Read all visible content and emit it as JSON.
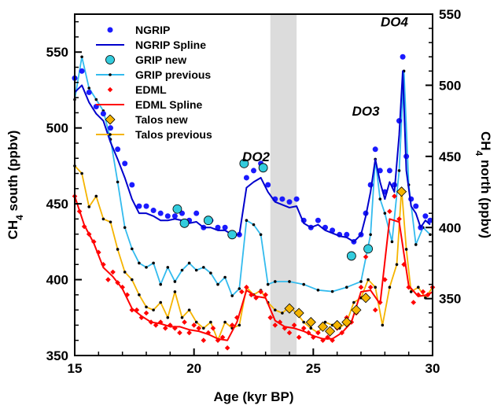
{
  "chart_data": {
    "type": "scatter",
    "xlabel": "Age (kyr BP)",
    "ylabel_left": "CH4 south (ppbv)",
    "ylabel_right": "CH4 north (ppbv)",
    "ylabel_left_parts": {
      "pre": "CH",
      "sub": "4",
      "post": " south (ppbv)"
    },
    "ylabel_right_parts": {
      "pre": "CH",
      "sub": "4",
      "post": " north (ppbv)"
    },
    "xlim": [
      15,
      30
    ],
    "ylim_left": [
      350,
      575
    ],
    "ylim_right": [
      310,
      550
    ],
    "x_ticks": [
      "15",
      "20",
      "25",
      "30"
    ],
    "y_left_ticks": [
      "350",
      "400",
      "450",
      "500",
      "550"
    ],
    "y_right_ticks": [
      "350",
      "400",
      "450",
      "500",
      "550"
    ],
    "shaded_region": [
      23.2,
      24.3
    ],
    "grid": false,
    "legend_position": "top-left",
    "annotations": [
      {
        "text": "DO2",
        "x": 22.6,
        "axis": "left",
        "y": 478
      },
      {
        "text": "DO3",
        "x": 27.2,
        "axis": "left",
        "y": 508
      },
      {
        "text": "DO4",
        "x": 28.4,
        "axis": "left",
        "y": 567
      }
    ],
    "series": [
      {
        "name": "NGRIP",
        "axis": "right",
        "kind": "markers",
        "marker": "circle",
        "color": "#1a1aff",
        "x": [
          15.0,
          15.3,
          15.6,
          15.9,
          16.2,
          16.5,
          16.8,
          17.1,
          17.4,
          17.7,
          18.0,
          18.3,
          18.6,
          18.9,
          19.2,
          19.5,
          19.8,
          20.1,
          20.4,
          20.7,
          21.0,
          21.3,
          21.6,
          21.9,
          22.2,
          22.5,
          22.8,
          23.1,
          23.4,
          23.7,
          24.0,
          24.3,
          24.6,
          24.9,
          25.2,
          25.5,
          25.8,
          26.1,
          26.4,
          26.7,
          27.0,
          27.2,
          27.4,
          27.6,
          27.8,
          28.0,
          28.2,
          28.4,
          28.6,
          28.75,
          28.9,
          29.1,
          29.3,
          29.5,
          29.7,
          29.9
        ],
        "y": [
          505,
          510,
          495,
          485,
          480,
          470,
          455,
          445,
          430,
          415,
          415,
          412,
          410,
          408,
          408,
          410,
          405,
          410,
          400,
          405,
          400,
          400,
          395,
          395,
          435,
          440,
          445,
          430,
          420,
          420,
          418,
          420,
          405,
          400,
          405,
          400,
          398,
          395,
          395,
          390,
          395,
          410,
          430,
          455,
          440,
          425,
          440,
          430,
          475,
          520,
          450,
          420,
          415,
          400,
          408,
          405
        ]
      },
      {
        "name": "NGRIP Spline",
        "axis": "right",
        "kind": "line",
        "color": "#0000cc",
        "x": [
          15.0,
          15.3,
          15.6,
          15.9,
          16.2,
          16.5,
          16.8,
          17.1,
          17.4,
          17.7,
          18.0,
          18.3,
          18.6,
          18.9,
          19.2,
          19.5,
          19.8,
          20.1,
          20.4,
          20.7,
          21.0,
          21.3,
          21.6,
          21.9,
          22.2,
          22.5,
          22.8,
          23.1,
          23.4,
          23.7,
          24.0,
          24.3,
          24.6,
          24.9,
          25.2,
          25.5,
          25.8,
          26.1,
          26.4,
          26.7,
          27.0,
          27.2,
          27.4,
          27.6,
          27.8,
          28.0,
          28.2,
          28.4,
          28.6,
          28.75,
          28.9,
          29.1,
          29.3,
          29.5,
          29.7,
          29.9
        ],
        "y": [
          495,
          500,
          488,
          480,
          475,
          460,
          448,
          435,
          420,
          410,
          410,
          408,
          405,
          405,
          406,
          405,
          403,
          404,
          400,
          400,
          398,
          398,
          395,
          395,
          428,
          432,
          435,
          425,
          418,
          416,
          414,
          415,
          403,
          400,
          402,
          398,
          396,
          394,
          393,
          390,
          395,
          408,
          425,
          448,
          432,
          420,
          432,
          425,
          465,
          510,
          440,
          415,
          410,
          400,
          405,
          402
        ]
      },
      {
        "name": "GRIP new",
        "axis": "right",
        "kind": "markers",
        "marker": "circle-large",
        "color": "#33ccdd",
        "x": [
          19.3,
          19.6,
          20.6,
          21.6,
          22.1,
          22.9,
          26.6,
          27.3
        ],
        "y": [
          413,
          403,
          405,
          395,
          445,
          442,
          380,
          385
        ]
      },
      {
        "name": "GRIP previous",
        "axis": "right",
        "kind": "line-markers",
        "marker": "dot",
        "color": "#33bbee",
        "x": [
          15.0,
          15.3,
          15.6,
          15.9,
          16.2,
          16.5,
          16.8,
          17.1,
          17.4,
          17.7,
          18.0,
          18.3,
          18.6,
          18.9,
          19.2,
          19.5,
          19.8,
          20.1,
          20.4,
          20.7,
          21.0,
          21.3,
          21.6,
          21.9,
          22.2,
          22.5,
          22.8,
          23.1,
          23.4,
          24.0,
          24.6,
          25.2,
          25.8,
          26.4,
          27.0,
          27.4,
          27.6,
          27.8,
          28.0,
          28.3,
          28.6,
          28.8,
          29.0,
          29.3,
          29.6,
          29.9
        ],
        "y": [
          490,
          520,
          498,
          490,
          482,
          462,
          432,
          400,
          385,
          375,
          372,
          375,
          360,
          372,
          362,
          370,
          375,
          370,
          372,
          368,
          360,
          365,
          352,
          357,
          405,
          402,
          395,
          360,
          362,
          362,
          360,
          356,
          355,
          358,
          362,
          395,
          448,
          420,
          410,
          390,
          440,
          510,
          430,
          388,
          400,
          395
        ]
      },
      {
        "name": "EDML",
        "axis": "left",
        "kind": "markers",
        "marker": "diamond-small",
        "color": "#ff0000",
        "x": [
          15.0,
          15.2,
          15.4,
          15.6,
          15.8,
          16.0,
          16.2,
          16.4,
          16.6,
          16.8,
          17.0,
          17.2,
          17.4,
          17.6,
          17.8,
          18.0,
          18.2,
          18.4,
          18.6,
          18.8,
          19.0,
          19.2,
          19.4,
          19.6,
          19.8,
          20.0,
          20.2,
          20.4,
          20.6,
          20.8,
          21.0,
          21.2,
          21.4,
          21.6,
          21.8,
          22.0,
          22.2,
          22.4,
          22.6,
          22.8,
          23.0,
          23.2,
          23.4,
          23.6,
          23.8,
          24.0,
          24.2,
          24.4,
          24.6,
          24.8,
          25.0,
          25.2,
          25.4,
          25.6,
          25.8,
          26.0,
          26.2,
          26.4,
          26.6,
          26.8,
          27.0,
          27.2,
          27.4,
          27.6,
          27.8,
          28.0,
          28.2,
          28.4,
          28.6,
          28.8,
          29.0,
          29.2,
          29.4,
          29.6,
          29.8,
          30.0
        ],
        "y": [
          455,
          445,
          435,
          430,
          425,
          418,
          410,
          400,
          405,
          398,
          395,
          390,
          380,
          380,
          375,
          378,
          372,
          370,
          372,
          368,
          370,
          368,
          365,
          372,
          365,
          370,
          368,
          360,
          365,
          368,
          360,
          362,
          355,
          370,
          375,
          392,
          395,
          390,
          388,
          392,
          390,
          375,
          370,
          372,
          368,
          365,
          370,
          362,
          368,
          365,
          362,
          365,
          360,
          362,
          360,
          368,
          365,
          375,
          372,
          378,
          395,
          415,
          395,
          380,
          385,
          400,
          445,
          455,
          440,
          410,
          395,
          385,
          390,
          392,
          390,
          395
        ]
      },
      {
        "name": "EDML Spline",
        "axis": "left",
        "kind": "line",
        "color": "#ff0000",
        "x": [
          15.0,
          15.4,
          15.8,
          16.2,
          16.6,
          17.0,
          17.4,
          17.8,
          18.2,
          18.6,
          19.0,
          19.4,
          19.8,
          20.2,
          20.6,
          21.0,
          21.4,
          21.8,
          22.2,
          22.6,
          23.0,
          23.4,
          23.8,
          24.2,
          24.6,
          25.0,
          25.4,
          25.8,
          26.2,
          26.6,
          27.0,
          27.4,
          27.8,
          28.2,
          28.6,
          29.0,
          29.4,
          29.8,
          30.0
        ],
        "y": [
          455,
          436,
          424,
          408,
          402,
          394,
          381,
          376,
          372,
          371,
          369,
          369,
          367,
          366,
          364,
          361,
          360,
          372,
          393,
          389,
          388,
          373,
          369,
          368,
          366,
          363,
          361,
          361,
          365,
          372,
          392,
          393,
          384,
          440,
          438,
          396,
          389,
          390,
          392
        ]
      },
      {
        "name": "Talos new",
        "axis": "left",
        "kind": "markers",
        "marker": "diamond",
        "color": "#f5b400",
        "x": [
          24.0,
          24.4,
          24.9,
          25.4,
          25.7,
          26.0,
          26.4,
          26.8,
          27.2,
          28.7
        ],
        "y": [
          381,
          378,
          372,
          369,
          366,
          370,
          372,
          380,
          388,
          458
        ]
      },
      {
        "name": "Talos previous",
        "axis": "left",
        "kind": "line-markers",
        "marker": "dot",
        "color": "#f5b400",
        "x": [
          15.0,
          15.3,
          15.6,
          15.9,
          16.2,
          16.5,
          16.8,
          17.1,
          17.4,
          17.7,
          18.0,
          18.3,
          18.6,
          18.9,
          19.2,
          19.5,
          19.8,
          20.1,
          20.4,
          20.7,
          21.0,
          21.3,
          21.6,
          21.9,
          22.2,
          22.5,
          22.8,
          23.1,
          23.4,
          23.7,
          24.0,
          24.3,
          24.6,
          24.9,
          25.2,
          25.5,
          25.8,
          26.1,
          26.4,
          26.7,
          27.0,
          27.3,
          27.6,
          27.9,
          28.2,
          28.5,
          28.7,
          28.9,
          29.1,
          29.4,
          29.7,
          30.0
        ],
        "y": [
          475,
          470,
          448,
          455,
          440,
          438,
          420,
          405,
          400,
          390,
          382,
          380,
          385,
          375,
          392,
          375,
          380,
          372,
          368,
          372,
          360,
          372,
          368,
          370,
          395,
          390,
          393,
          385,
          380,
          378,
          382,
          378,
          372,
          368,
          365,
          372,
          370,
          368,
          372,
          385,
          388,
          400,
          395,
          370,
          395,
          410,
          460,
          420,
          392,
          395,
          388,
          395
        ]
      }
    ]
  }
}
